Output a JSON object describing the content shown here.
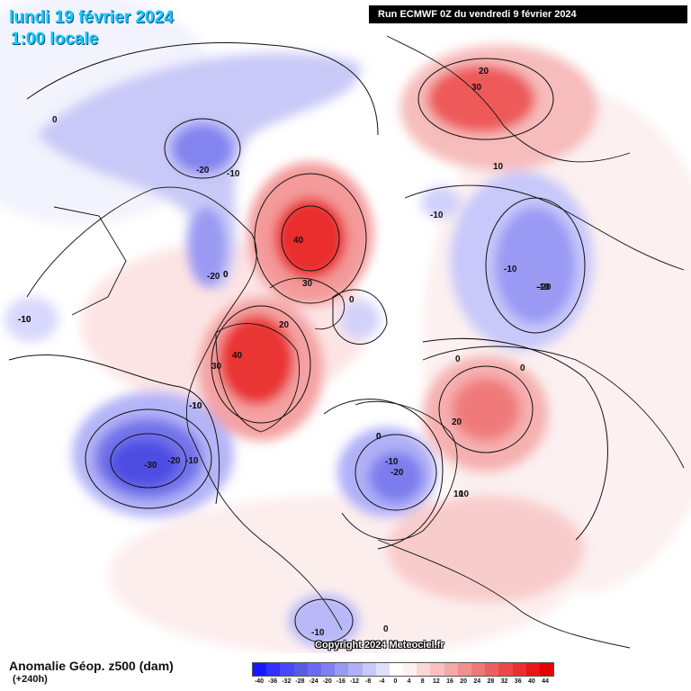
{
  "header": {
    "date_title": "lundi 19 février 2024",
    "time_title": "1:00 locale",
    "run_label": "Run ECMWF 0Z du vendredi 9 février 2024"
  },
  "footer": {
    "variable_title": "Anomalie Géop. z500 (dam)",
    "lead_time": "(+240h)",
    "copyright": "Copyright 2024 Meteociel.fr"
  },
  "legend": {
    "ticks": [
      "-40",
      "-36",
      "-32",
      "-28",
      "-24",
      "-20",
      "-16",
      "-12",
      "-8",
      "-4",
      "0",
      "4",
      "8",
      "12",
      "16",
      "20",
      "24",
      "28",
      "32",
      "36",
      "40",
      "44"
    ],
    "colors": [
      "#1818ff",
      "#3030ff",
      "#4848ff",
      "#5a5ae8",
      "#6c6cf0",
      "#8080f2",
      "#9898f5",
      "#b0b0f8",
      "#c8c8fa",
      "#e0e0fc",
      "#ffffff",
      "#fff0f0",
      "#fbd8d8",
      "#f8c0c0",
      "#f5a8a8",
      "#f29090",
      "#f07878",
      "#ee6060",
      "#ec4848",
      "#ea3030",
      "#e81818",
      "#e60000"
    ]
  },
  "contour_labels": [
    "0",
    "-20",
    "-10",
    "-10",
    "-20",
    "0",
    "-10",
    "40",
    "30",
    "20",
    "0",
    "40",
    "30",
    "-10",
    "-30",
    "-20",
    "-10",
    "-10",
    "-20",
    "10",
    "0",
    "20",
    "0",
    "-10",
    "0",
    "20",
    "30",
    "10",
    "-10",
    "-10",
    "-20",
    "0",
    "-10",
    "10",
    "0",
    "-10",
    "0"
  ],
  "icons": {
    "map_background": "geopotential-anomaly-map"
  }
}
